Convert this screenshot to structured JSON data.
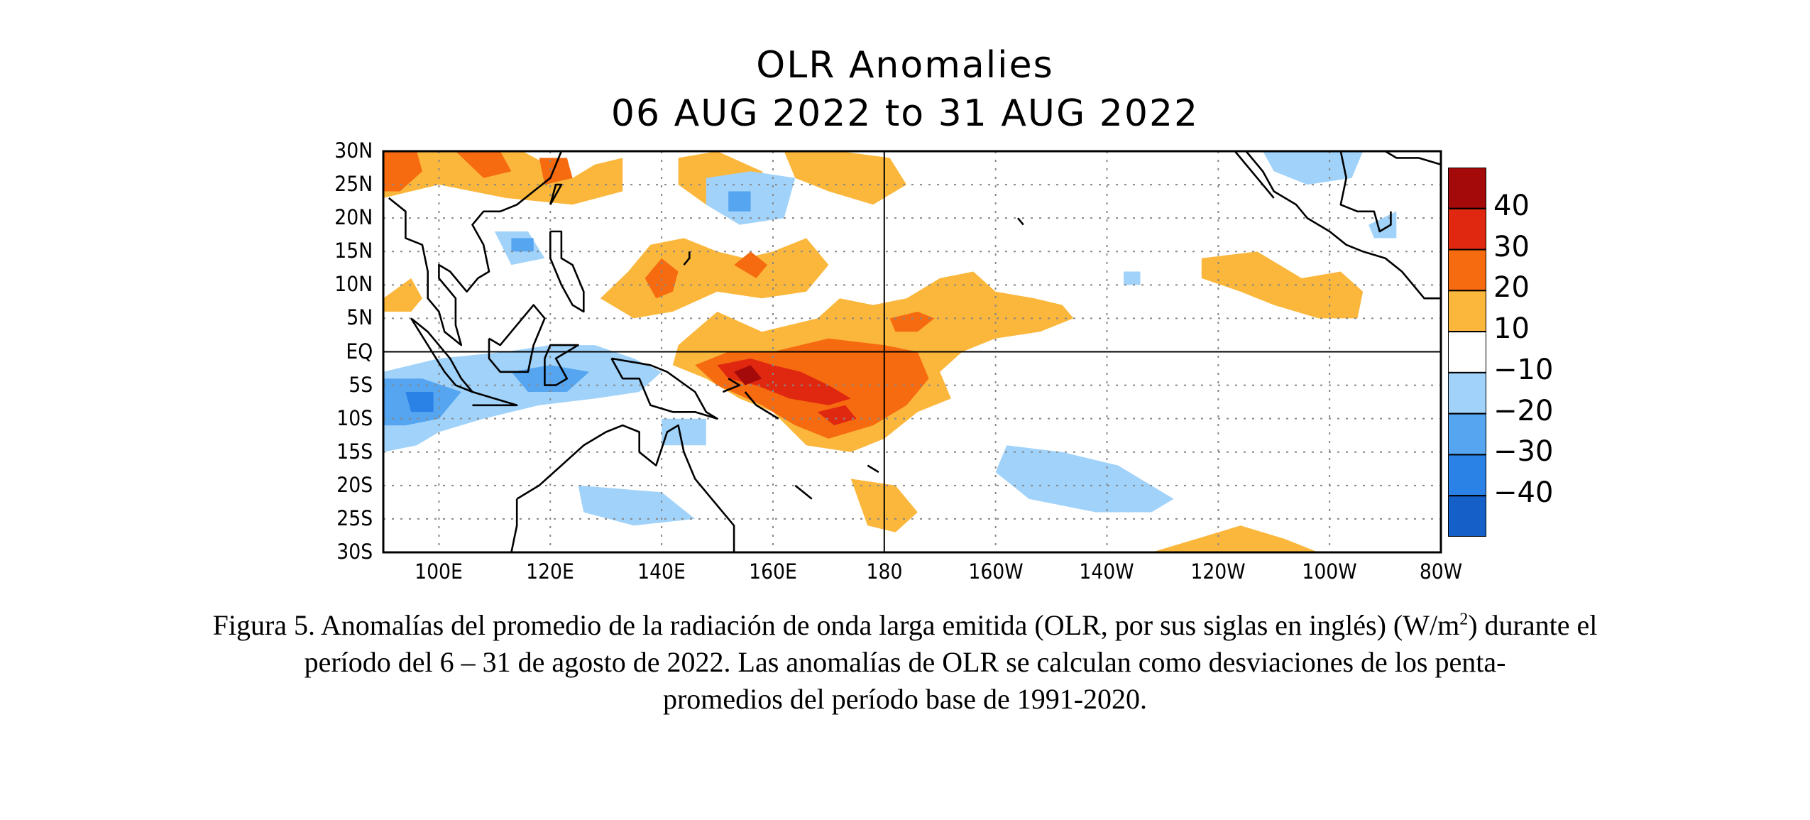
{
  "title": {
    "line1": "OLR Anomalies",
    "line2": "06 AUG 2022 to 31 AUG 2022"
  },
  "map": {
    "variable": "OLR anomaly",
    "units": "W/m2",
    "lon_range": [
      "90E",
      "80W"
    ],
    "lat_range": [
      "30S",
      "30N"
    ],
    "reference_lines": [
      "EQ",
      "180"
    ],
    "grid": "dotted",
    "lat_labels": [
      "30N",
      "25N",
      "20N",
      "15N",
      "10N",
      "5N",
      "EQ",
      "5S",
      "10S",
      "15S",
      "20S",
      "25S",
      "30S"
    ],
    "lon_labels": [
      "100E",
      "120E",
      "140E",
      "160E",
      "180",
      "160W",
      "140W",
      "120W",
      "100W",
      "80W"
    ],
    "colors": {
      "pos_10_20": "#fbb73c",
      "pos_20_30": "#f66a10",
      "pos_30_40": "#e02810",
      "pos_40_plus": "#a50a0a",
      "neg_10_20": "#a0d2fa",
      "neg_20_30": "#55a5f0",
      "neg_30_40": "#2a82e6",
      "neg_40_plus": "#1560c8",
      "neutral": "#ffffff",
      "coastline": "#000000"
    },
    "features": [
      {
        "name": "positive anomaly West Pacific",
        "center": [
          "160E",
          "5S"
        ],
        "max_bin": "40+"
      },
      {
        "name": "positive anomaly Central Pacific",
        "center": [
          "170W",
          "5N"
        ],
        "max_bin": "20-30"
      },
      {
        "name": "negative anomaly Indonesia / Indian Ocean",
        "center": [
          "100E",
          "7S"
        ],
        "max_bin": "-30 to -40"
      },
      {
        "name": "positive anomaly East Pacific",
        "center": [
          "110W",
          "10N"
        ],
        "max_bin": "10-20"
      },
      {
        "name": "negative anomaly South Pacific",
        "center": [
          "145W",
          "22S"
        ],
        "max_bin": "-10 to -20"
      }
    ]
  },
  "colorbar": {
    "labels": [
      "40",
      "30",
      "20",
      "10",
      "−10",
      "−20",
      "−30",
      "−40"
    ],
    "bins": [
      {
        "range": "40+",
        "color": "#a50a0a"
      },
      {
        "range": "30-40",
        "color": "#e02810"
      },
      {
        "range": "20-30",
        "color": "#f66a10"
      },
      {
        "range": "10-20",
        "color": "#fbb73c"
      },
      {
        "range": "-10-10",
        "color": "#ffffff"
      },
      {
        "range": "-20--10",
        "color": "#a0d2fa"
      },
      {
        "range": "-30--20",
        "color": "#55a5f0"
      },
      {
        "range": "-40--30",
        "color": "#2a82e6"
      },
      {
        "range": "<-40",
        "color": "#1560c8"
      }
    ]
  },
  "caption": {
    "part1": "Figura 5. Anomalías del promedio de la radiación de onda larga emitida (OLR, por sus siglas en inglés) (W/m",
    "sup": "2",
    "part2": ") durante el",
    "line2": "período del 6 – 31 de agosto de 2022.  Las anomalías de OLR se calculan como desviaciones de los penta-",
    "line3": "promedios del período base de 1991-2020."
  }
}
